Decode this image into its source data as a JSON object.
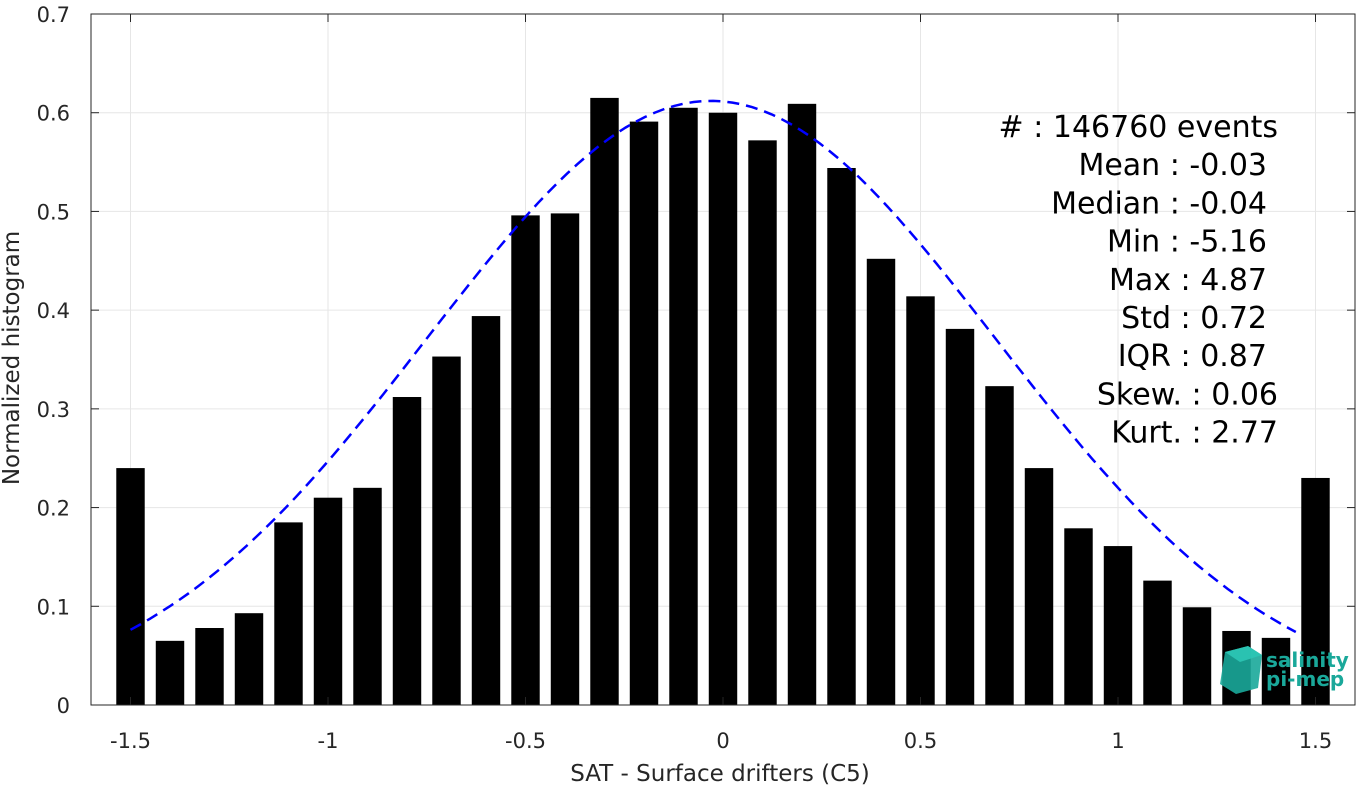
{
  "chart_data": {
    "type": "bar",
    "xlabel": "SAT - Surface drifters (C5)",
    "ylabel": "Normalized histogram",
    "xlim": [
      -1.6,
      1.6
    ],
    "ylim": [
      0,
      0.7
    ],
    "xticks": [
      -1.5,
      -1,
      -0.5,
      0,
      0.5,
      1,
      1.5
    ],
    "xtick_labels": [
      "-1.5",
      "-1",
      "-0.5",
      "0",
      "0.5",
      "1",
      "1.5"
    ],
    "yticks": [
      0,
      0.1,
      0.2,
      0.3,
      0.4,
      0.5,
      0.6,
      0.7
    ],
    "ytick_labels": [
      "0",
      "0.1",
      "0.2",
      "0.3",
      "0.4",
      "0.5",
      "0.6",
      "0.7"
    ],
    "grid": true,
    "bar_color": "#000000",
    "bin_width": 0.1,
    "x": [
      -1.5,
      -1.4,
      -1.3,
      -1.2,
      -1.1,
      -1.0,
      -0.9,
      -0.8,
      -0.7,
      -0.6,
      -0.5,
      -0.4,
      -0.3,
      -0.2,
      -0.1,
      0.0,
      0.1,
      0.2,
      0.3,
      0.4,
      0.5,
      0.6,
      0.7,
      0.8,
      0.9,
      1.0,
      1.1,
      1.2,
      1.3,
      1.4,
      1.5
    ],
    "values": [
      0.24,
      0.065,
      0.078,
      0.093,
      0.185,
      0.21,
      0.22,
      0.312,
      0.353,
      0.394,
      0.496,
      0.498,
      0.615,
      0.591,
      0.605,
      0.6,
      0.572,
      0.609,
      0.544,
      0.452,
      0.414,
      0.381,
      0.323,
      0.24,
      0.179,
      0.161,
      0.126,
      0.099,
      0.075,
      0.068,
      0.23
    ],
    "fit": {
      "style": "dashed",
      "color": "#0000ff",
      "mean": -0.03,
      "std": 0.72,
      "peak": 0.612,
      "x_range": [
        -1.5,
        1.45
      ]
    },
    "stats": [
      {
        "label": "#",
        "value": ": 146760 events"
      },
      {
        "label": "Mean",
        "value": ": -0.03"
      },
      {
        "label": "Median",
        "value": ": -0.04"
      },
      {
        "label": "Min",
        "value": ": -5.16"
      },
      {
        "label": "Max",
        "value": ": 4.87"
      },
      {
        "label": "Std",
        "value": ": 0.72"
      },
      {
        "label": "IQR",
        "value": ": 0.87"
      },
      {
        "label": "Skew.",
        "value": ": 0.06"
      },
      {
        "label": "Kurt.",
        "value": ": 2.77"
      }
    ]
  },
  "logo": {
    "line1": "salinity",
    "line2": "pi-mep",
    "color": "#1aa89a"
  }
}
